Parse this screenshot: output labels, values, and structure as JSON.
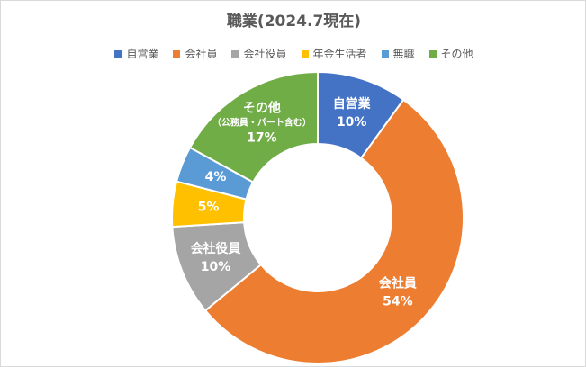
{
  "chart_data": {
    "type": "pie",
    "variant": "donut",
    "title": "職業(2024.7現在)",
    "legend_position": "top",
    "categories": [
      "自営業",
      "会社員",
      "会社役員",
      "年金生活者",
      "無職",
      "その他"
    ],
    "values": [
      10,
      54,
      10,
      5,
      4,
      17
    ],
    "value_format": "percent",
    "colors": [
      "#4472C4",
      "#ED7D31",
      "#A5A5A5",
      "#FFC000",
      "#5B9BD5",
      "#70AD47"
    ],
    "data_labels": [
      {
        "lines": [
          "自営業"
        ],
        "value": "10%"
      },
      {
        "lines": [
          "会社員"
        ],
        "value": "54%"
      },
      {
        "lines": [
          "会社役員"
        ],
        "value": "10%"
      },
      {
        "lines": [],
        "value": "5%"
      },
      {
        "lines": [],
        "value": "4%"
      },
      {
        "lines": [
          "その他",
          "（公務員・パート含む）"
        ],
        "value": "17%"
      }
    ]
  }
}
